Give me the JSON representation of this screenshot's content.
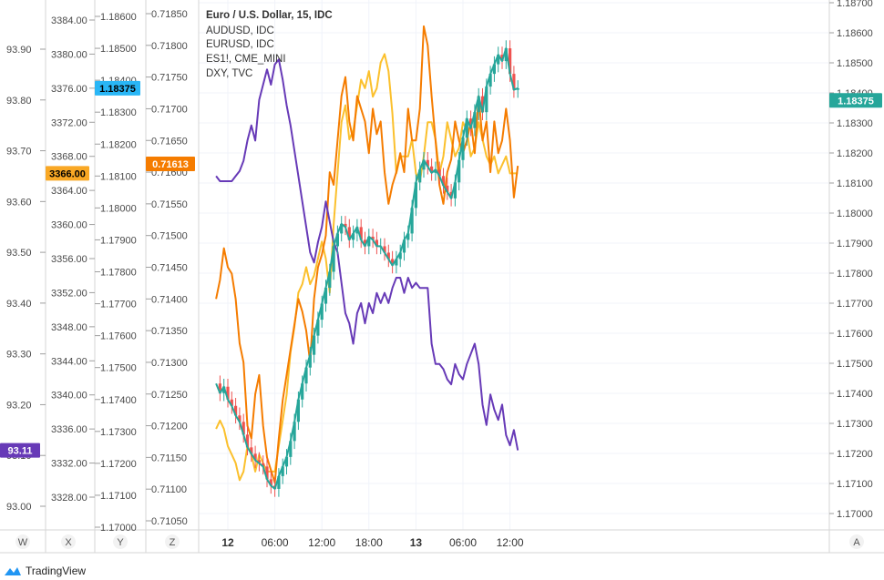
{
  "legend": {
    "title": "Euro / U.S. Dollar, 15, IDC",
    "items": [
      "AUDUSD, IDC",
      "EURUSD, IDC",
      "ES1!, CME_MINI",
      "DXY, TVC"
    ]
  },
  "colors": {
    "eurusd": "#26a69a",
    "eurusd_wick": "#1fa89a",
    "eurusd_up": "#26a69a",
    "eurusd_down": "#ef5350",
    "audusd": "#f57c00",
    "es": "#fbc02d",
    "dxy": "#673ab7",
    "badge_dxy": "#673ab7",
    "badge_es": "#f9a825",
    "badge_eur": "#29b6f6",
    "badge_aud": "#f57c00",
    "badge_right": "#26a69a"
  },
  "axes": {
    "w": {
      "letter": "W",
      "ticks": [
        "93.90",
        "93.80",
        "93.70",
        "93.60",
        "93.50",
        "93.40",
        "93.30",
        "93.20",
        "93.10",
        "93.00"
      ],
      "tick_values": [
        93.9,
        93.8,
        93.7,
        93.6,
        93.5,
        93.4,
        93.3,
        93.2,
        93.1,
        93.0
      ],
      "current": "93.11"
    },
    "x": {
      "letter": "X",
      "ticks": [
        "3384.00",
        "3380.00",
        "3376.00",
        "3372.00",
        "3368.00",
        "3364.00",
        "3360.00",
        "3356.00",
        "3352.00",
        "3348.00",
        "3344.00",
        "3340.00",
        "3336.00",
        "3332.00",
        "3328.00"
      ],
      "tick_values": [
        3384,
        3380,
        3376,
        3372,
        3368,
        3364,
        3360,
        3356,
        3352,
        3348,
        3344,
        3340,
        3336,
        3332,
        3328
      ],
      "current": "3366.00"
    },
    "y": {
      "letter": "Y",
      "ticks": [
        "1.18600",
        "1.18500",
        "1.18400",
        "1.18300",
        "1.18200",
        "1.18100",
        "1.18000",
        "1.17900",
        "1.17800",
        "1.17700",
        "1.17600",
        "1.17500",
        "1.17400",
        "1.17300",
        "1.17200",
        "1.17100",
        "1.17000"
      ],
      "tick_values": [
        1.186,
        1.185,
        1.184,
        1.183,
        1.182,
        1.181,
        1.18,
        1.179,
        1.178,
        1.177,
        1.176,
        1.175,
        1.174,
        1.173,
        1.172,
        1.171,
        1.17
      ],
      "current": "1.18375"
    },
    "z": {
      "letter": "Z",
      "ticks": [
        "0.71850",
        "0.71800",
        "0.71750",
        "0.71700",
        "0.71650",
        "0.71600",
        "0.71550",
        "0.71500",
        "0.71450",
        "0.71400",
        "0.71350",
        "0.71300",
        "0.71250",
        "0.71200",
        "0.71150",
        "0.71100",
        "0.71050"
      ],
      "tick_values": [
        0.7185,
        0.718,
        0.7175,
        0.717,
        0.7165,
        0.716,
        0.7155,
        0.715,
        0.7145,
        0.714,
        0.7135,
        0.713,
        0.7125,
        0.712,
        0.7115,
        0.711,
        0.7105
      ],
      "current": "0.71613"
    },
    "a": {
      "letter": "A",
      "ticks": [
        "1.18700",
        "1.18600",
        "1.18500",
        "1.18400",
        "1.18300",
        "1.18200",
        "1.18100",
        "1.18000",
        "1.17900",
        "1.17800",
        "1.17700",
        "1.17600",
        "1.17500",
        "1.17400",
        "1.17300",
        "1.17200",
        "1.17100",
        "1.17000"
      ],
      "tick_values": [
        1.187,
        1.186,
        1.185,
        1.184,
        1.183,
        1.182,
        1.181,
        1.18,
        1.179,
        1.178,
        1.177,
        1.176,
        1.175,
        1.174,
        1.173,
        1.172,
        1.171,
        1.17
      ],
      "current": "1.18375"
    }
  },
  "time_axis": {
    "labels": [
      "12",
      "06:00",
      "12:00",
      "18:00",
      "13",
      "06:00",
      "12:00"
    ],
    "hours": [
      0,
      6,
      12,
      18,
      24,
      30,
      36
    ]
  },
  "brand": {
    "name": "TradingView"
  },
  "chart_data": {
    "type": "line",
    "x_unit": "hours",
    "series": [
      {
        "name": "AUDUSD, IDC",
        "axis": "z",
        "style": "line",
        "x": [
          -1.5,
          -1,
          -0.5,
          0,
          0.5,
          1,
          1.5,
          2,
          2.5,
          3,
          3.5,
          4,
          4.5,
          5,
          5.5,
          6,
          6.5,
          7,
          7.5,
          8,
          8.5,
          9,
          9.5,
          10,
          10.5,
          11,
          11.5,
          12,
          12.5,
          13,
          13.5,
          14,
          14.5,
          15,
          15.5,
          16,
          16.5,
          17,
          17.5,
          18,
          18.5,
          19,
          19.5,
          20,
          20.5,
          21,
          21.5,
          22,
          22.5,
          23,
          23.5,
          24,
          24.5,
          25,
          25.5,
          26,
          26.5,
          27,
          27.5,
          28,
          28.5,
          29,
          29.5,
          30,
          30.5,
          31,
          31.5,
          32,
          32.5,
          33,
          33.5,
          34,
          34.5,
          35,
          35.5,
          36,
          36.5,
          37
        ],
        "y": [
          0.714,
          0.7143,
          0.7148,
          0.7145,
          0.7144,
          0.714,
          0.7133,
          0.713,
          0.712,
          0.7118,
          0.7125,
          0.7128,
          0.712,
          0.7115,
          0.7113,
          0.7111,
          0.7118,
          0.7124,
          0.7128,
          0.7132,
          0.7136,
          0.714,
          0.7138,
          0.7135,
          0.713,
          0.714,
          0.7145,
          0.7147,
          0.715,
          0.716,
          0.7158,
          0.7165,
          0.7172,
          0.7175,
          0.7168,
          0.7165,
          0.7172,
          0.717,
          0.7168,
          0.7163,
          0.717,
          0.7166,
          0.7168,
          0.716,
          0.7155,
          0.7158,
          0.716,
          0.7163,
          0.716,
          0.717,
          0.7165,
          0.7165,
          0.717,
          0.7183,
          0.718,
          0.7172,
          0.7165,
          0.7158,
          0.7155,
          0.716,
          0.7162,
          0.7168,
          0.7165,
          0.7163,
          0.7165,
          0.7168,
          0.7163,
          0.7172,
          0.7165,
          0.7168,
          0.716,
          0.7168,
          0.7163,
          0.7165,
          0.717,
          0.7165,
          0.7156,
          0.7161
        ]
      },
      {
        "name": "ES1!, CME_MINI",
        "axis": "x",
        "style": "line",
        "x": [
          -1.5,
          -1,
          -0.5,
          0,
          0.5,
          1,
          1.5,
          2,
          2.5,
          3,
          3.5,
          4,
          4.5,
          5,
          5.5,
          6,
          6.5,
          7,
          7.5,
          8,
          8.5,
          9,
          9.5,
          10,
          10.5,
          11,
          11.5,
          12,
          12.5,
          13,
          13.5,
          14,
          14.5,
          15,
          15.5,
          16,
          16.5,
          17,
          17.5,
          18,
          18.5,
          19,
          19.5,
          20,
          20.5,
          21,
          21.5,
          22,
          22.5,
          23,
          23.5,
          24,
          24.5,
          25,
          25.5,
          26,
          26.5,
          27,
          27.5,
          28,
          28.5,
          29,
          29.5,
          30,
          30.5,
          31,
          31.5,
          32,
          32.5,
          33,
          33.5,
          34,
          34.5,
          35,
          35.5,
          36,
          36.5,
          37
        ],
        "y": [
          3336,
          3337,
          3336,
          3334,
          3333,
          3332,
          3330,
          3331,
          3334,
          3333,
          3331,
          3333,
          3332,
          3331,
          3331,
          3331,
          3334,
          3337,
          3340,
          3345,
          3348,
          3352,
          3353,
          3355,
          3353,
          3354,
          3356,
          3358,
          3356,
          3352,
          3360,
          3366,
          3372,
          3374,
          3370,
          3371,
          3374,
          3377,
          3376,
          3378,
          3375,
          3376,
          3379,
          3380,
          3378,
          3373,
          3366,
          3368,
          3368,
          3368,
          3370,
          3366,
          3365,
          3368,
          3372,
          3372,
          3370,
          3366,
          3368,
          3372,
          3370,
          3368,
          3369,
          3372,
          3371,
          3368,
          3369,
          3372,
          3370,
          3368,
          3367,
          3368,
          3366,
          3367,
          3368,
          3366,
          3366,
          3366
        ]
      },
      {
        "name": "DXY, TVC",
        "axis": "w",
        "style": "line",
        "x": [
          -1.5,
          -1,
          -0.5,
          0,
          0.5,
          1,
          1.5,
          2,
          2.5,
          3,
          3.5,
          4,
          4.5,
          5,
          5.5,
          6,
          6.5,
          7,
          7.5,
          8,
          8.5,
          9,
          9.5,
          10,
          10.5,
          11,
          11.5,
          12,
          12.5,
          13,
          13.5,
          14,
          14.5,
          15,
          15.5,
          16,
          16.5,
          17,
          17.5,
          18,
          18.5,
          19,
          19.5,
          20,
          20.5,
          21,
          21.5,
          22,
          22.5,
          23,
          23.5,
          24,
          24.5,
          25,
          25.5,
          26,
          26.5,
          27,
          27.5,
          28,
          28.5,
          29,
          29.5,
          30,
          30.5,
          31,
          31.5,
          32,
          32.5,
          33,
          33.5,
          34,
          34.5,
          35,
          35.5,
          36,
          36.5,
          37
        ],
        "y": [
          93.65,
          93.64,
          93.64,
          93.64,
          93.64,
          93.65,
          93.66,
          93.68,
          93.72,
          93.75,
          93.72,
          93.8,
          93.83,
          93.86,
          93.83,
          93.87,
          93.88,
          93.84,
          93.79,
          93.75,
          93.7,
          93.65,
          93.6,
          93.55,
          93.5,
          93.48,
          93.52,
          93.55,
          93.6,
          93.56,
          93.52,
          93.5,
          93.44,
          93.38,
          93.36,
          93.32,
          93.38,
          93.4,
          93.36,
          93.4,
          93.38,
          93.42,
          93.4,
          93.42,
          93.4,
          93.43,
          93.45,
          93.45,
          93.42,
          93.45,
          93.43,
          93.44,
          93.43,
          93.43,
          93.43,
          93.32,
          93.28,
          93.28,
          93.27,
          93.25,
          93.24,
          93.28,
          93.26,
          93.25,
          93.28,
          93.3,
          93.32,
          93.28,
          93.2,
          93.16,
          93.22,
          93.19,
          93.17,
          93.2,
          93.14,
          93.12,
          93.15,
          93.11
        ]
      },
      {
        "name": "EURUSD, IDC",
        "axis": "y",
        "style": "candles+line",
        "x": [
          -1.5,
          -1,
          -0.5,
          0,
          0.5,
          1,
          1.5,
          2,
          2.5,
          3,
          3.5,
          4,
          4.5,
          5,
          5.5,
          6,
          6.5,
          7,
          7.5,
          8,
          8.5,
          9,
          9.5,
          10,
          10.5,
          11,
          11.5,
          12,
          12.5,
          13,
          13.5,
          14,
          14.5,
          15,
          15.5,
          16,
          16.5,
          17,
          17.5,
          18,
          18.5,
          19,
          19.5,
          20,
          20.5,
          21,
          21.5,
          22,
          22.5,
          23,
          23.5,
          24,
          24.5,
          25,
          25.5,
          26,
          26.5,
          27,
          27.5,
          28,
          28.5,
          29,
          29.5,
          30,
          30.5,
          31,
          31.5,
          32,
          32.5,
          33,
          33.5,
          34,
          34.5,
          35,
          35.5,
          36,
          36.5,
          37
        ],
        "y": [
          1.1745,
          1.1742,
          1.1744,
          1.174,
          1.1738,
          1.1735,
          1.1733,
          1.1729,
          1.1725,
          1.1723,
          1.1721,
          1.172,
          1.1719,
          1.1715,
          1.1713,
          1.1712,
          1.1716,
          1.1719,
          1.1722,
          1.1727,
          1.1733,
          1.174,
          1.1745,
          1.175,
          1.1754,
          1.176,
          1.1765,
          1.177,
          1.1775,
          1.178,
          1.1788,
          1.1792,
          1.1795,
          1.1794,
          1.179,
          1.1792,
          1.1794,
          1.179,
          1.1788,
          1.1791,
          1.179,
          1.1788,
          1.1788,
          1.1786,
          1.1784,
          1.1782,
          1.1784,
          1.1786,
          1.179,
          1.1792,
          1.18,
          1.1808,
          1.1812,
          1.1815,
          1.1813,
          1.1811,
          1.1812,
          1.181,
          1.1807,
          1.1805,
          1.1803,
          1.1808,
          1.1815,
          1.1822,
          1.1828,
          1.1825,
          1.183,
          1.1835,
          1.183,
          1.1838,
          1.1842,
          1.1845,
          1.1848,
          1.1846,
          1.185,
          1.1842,
          1.1837,
          1.18375
        ]
      }
    ]
  }
}
